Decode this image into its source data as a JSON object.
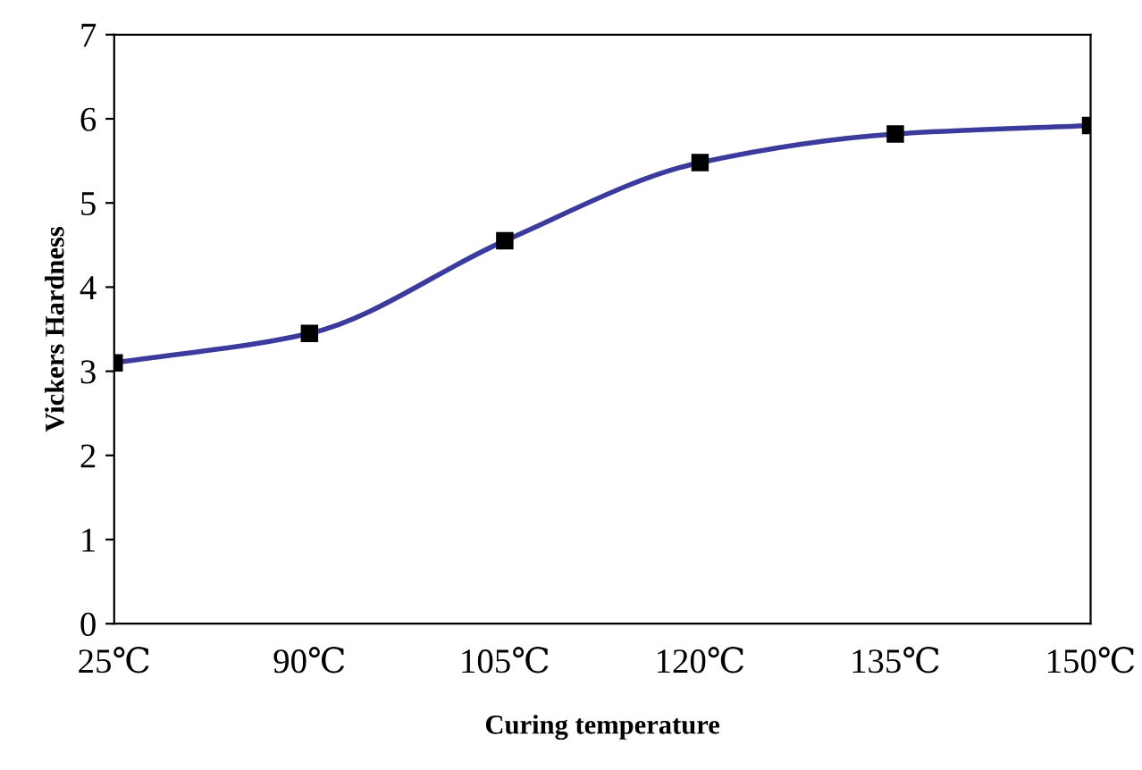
{
  "chart_data": {
    "type": "line",
    "xlabel": "Curing temperature",
    "ylabel": "Vickers Hardness",
    "categories": [
      "25℃",
      "90℃",
      "105℃",
      "120℃",
      "135℃",
      "150℃"
    ],
    "series": [
      {
        "color": "#3b3b9e",
        "values": [
          3.1,
          3.45,
          4.55,
          5.48,
          5.82,
          5.92
        ]
      }
    ],
    "ylim": [
      0,
      7
    ],
    "yticks": [
      0,
      1,
      2,
      3,
      4,
      5,
      6,
      7
    ],
    "marker": "square",
    "line_style": "solid",
    "grid": false,
    "legend": false
  }
}
